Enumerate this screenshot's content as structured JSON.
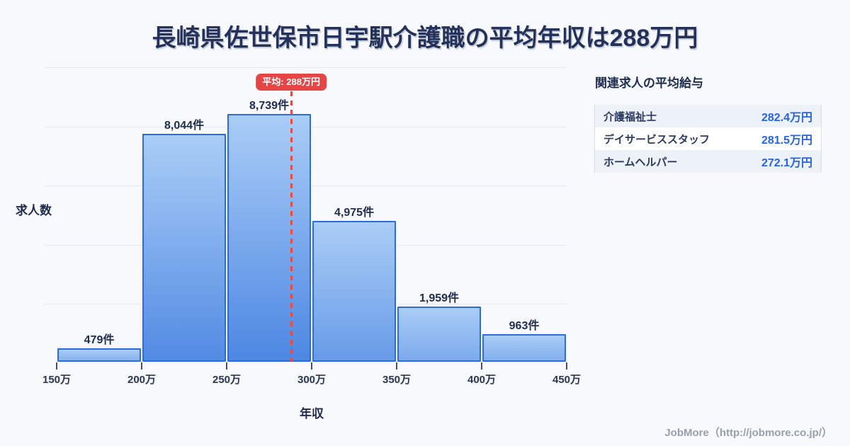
{
  "title": "長崎県佐世保市日宇駅介護職の平均年収は288万円",
  "chart_data": {
    "type": "bar",
    "title": "長崎県佐世保市日宇駅介護職の平均年収は288万円",
    "xlabel": "年収",
    "ylabel": "求人数",
    "x_tick_labels": [
      "150万",
      "200万",
      "250万",
      "300万",
      "350万",
      "400万",
      "450万"
    ],
    "bin_edges_man_yen": [
      150,
      200,
      250,
      300,
      350,
      400,
      450
    ],
    "values": [
      479,
      8044,
      8739,
      4975,
      1959,
      963
    ],
    "bar_labels": [
      "479件",
      "8,044件",
      "8,739件",
      "4,975件",
      "1,959件",
      "963件"
    ],
    "average_label": "平均: 288万円",
    "average_man_yen": 288,
    "ylim": [
      0,
      10650
    ],
    "grid": true,
    "legend": false
  },
  "related_jobs": {
    "heading": "関連求人の平均給与",
    "rows": [
      {
        "name": "介護福祉士",
        "salary": "282.4万円"
      },
      {
        "name": "デイサービススタッフ",
        "salary": "281.5万円"
      },
      {
        "name": "ホームヘルパー",
        "salary": "272.1万円"
      }
    ]
  },
  "footer": {
    "credit": "JobMore（http://jobmore.co.jp/）"
  },
  "colors": {
    "background": "#f7f9fc",
    "bar_border": "#2c6ce1",
    "bar_gradient_top": "#aacdf6",
    "bar_gradient_bottom": "#4d87e3",
    "average_red": "#e64545",
    "title_navy": "#243158",
    "value_blue": "#2563eb",
    "grid": "#e4e9f1",
    "row_stripe": "#edf1f8",
    "footer_gray": "#9aa0ab"
  }
}
